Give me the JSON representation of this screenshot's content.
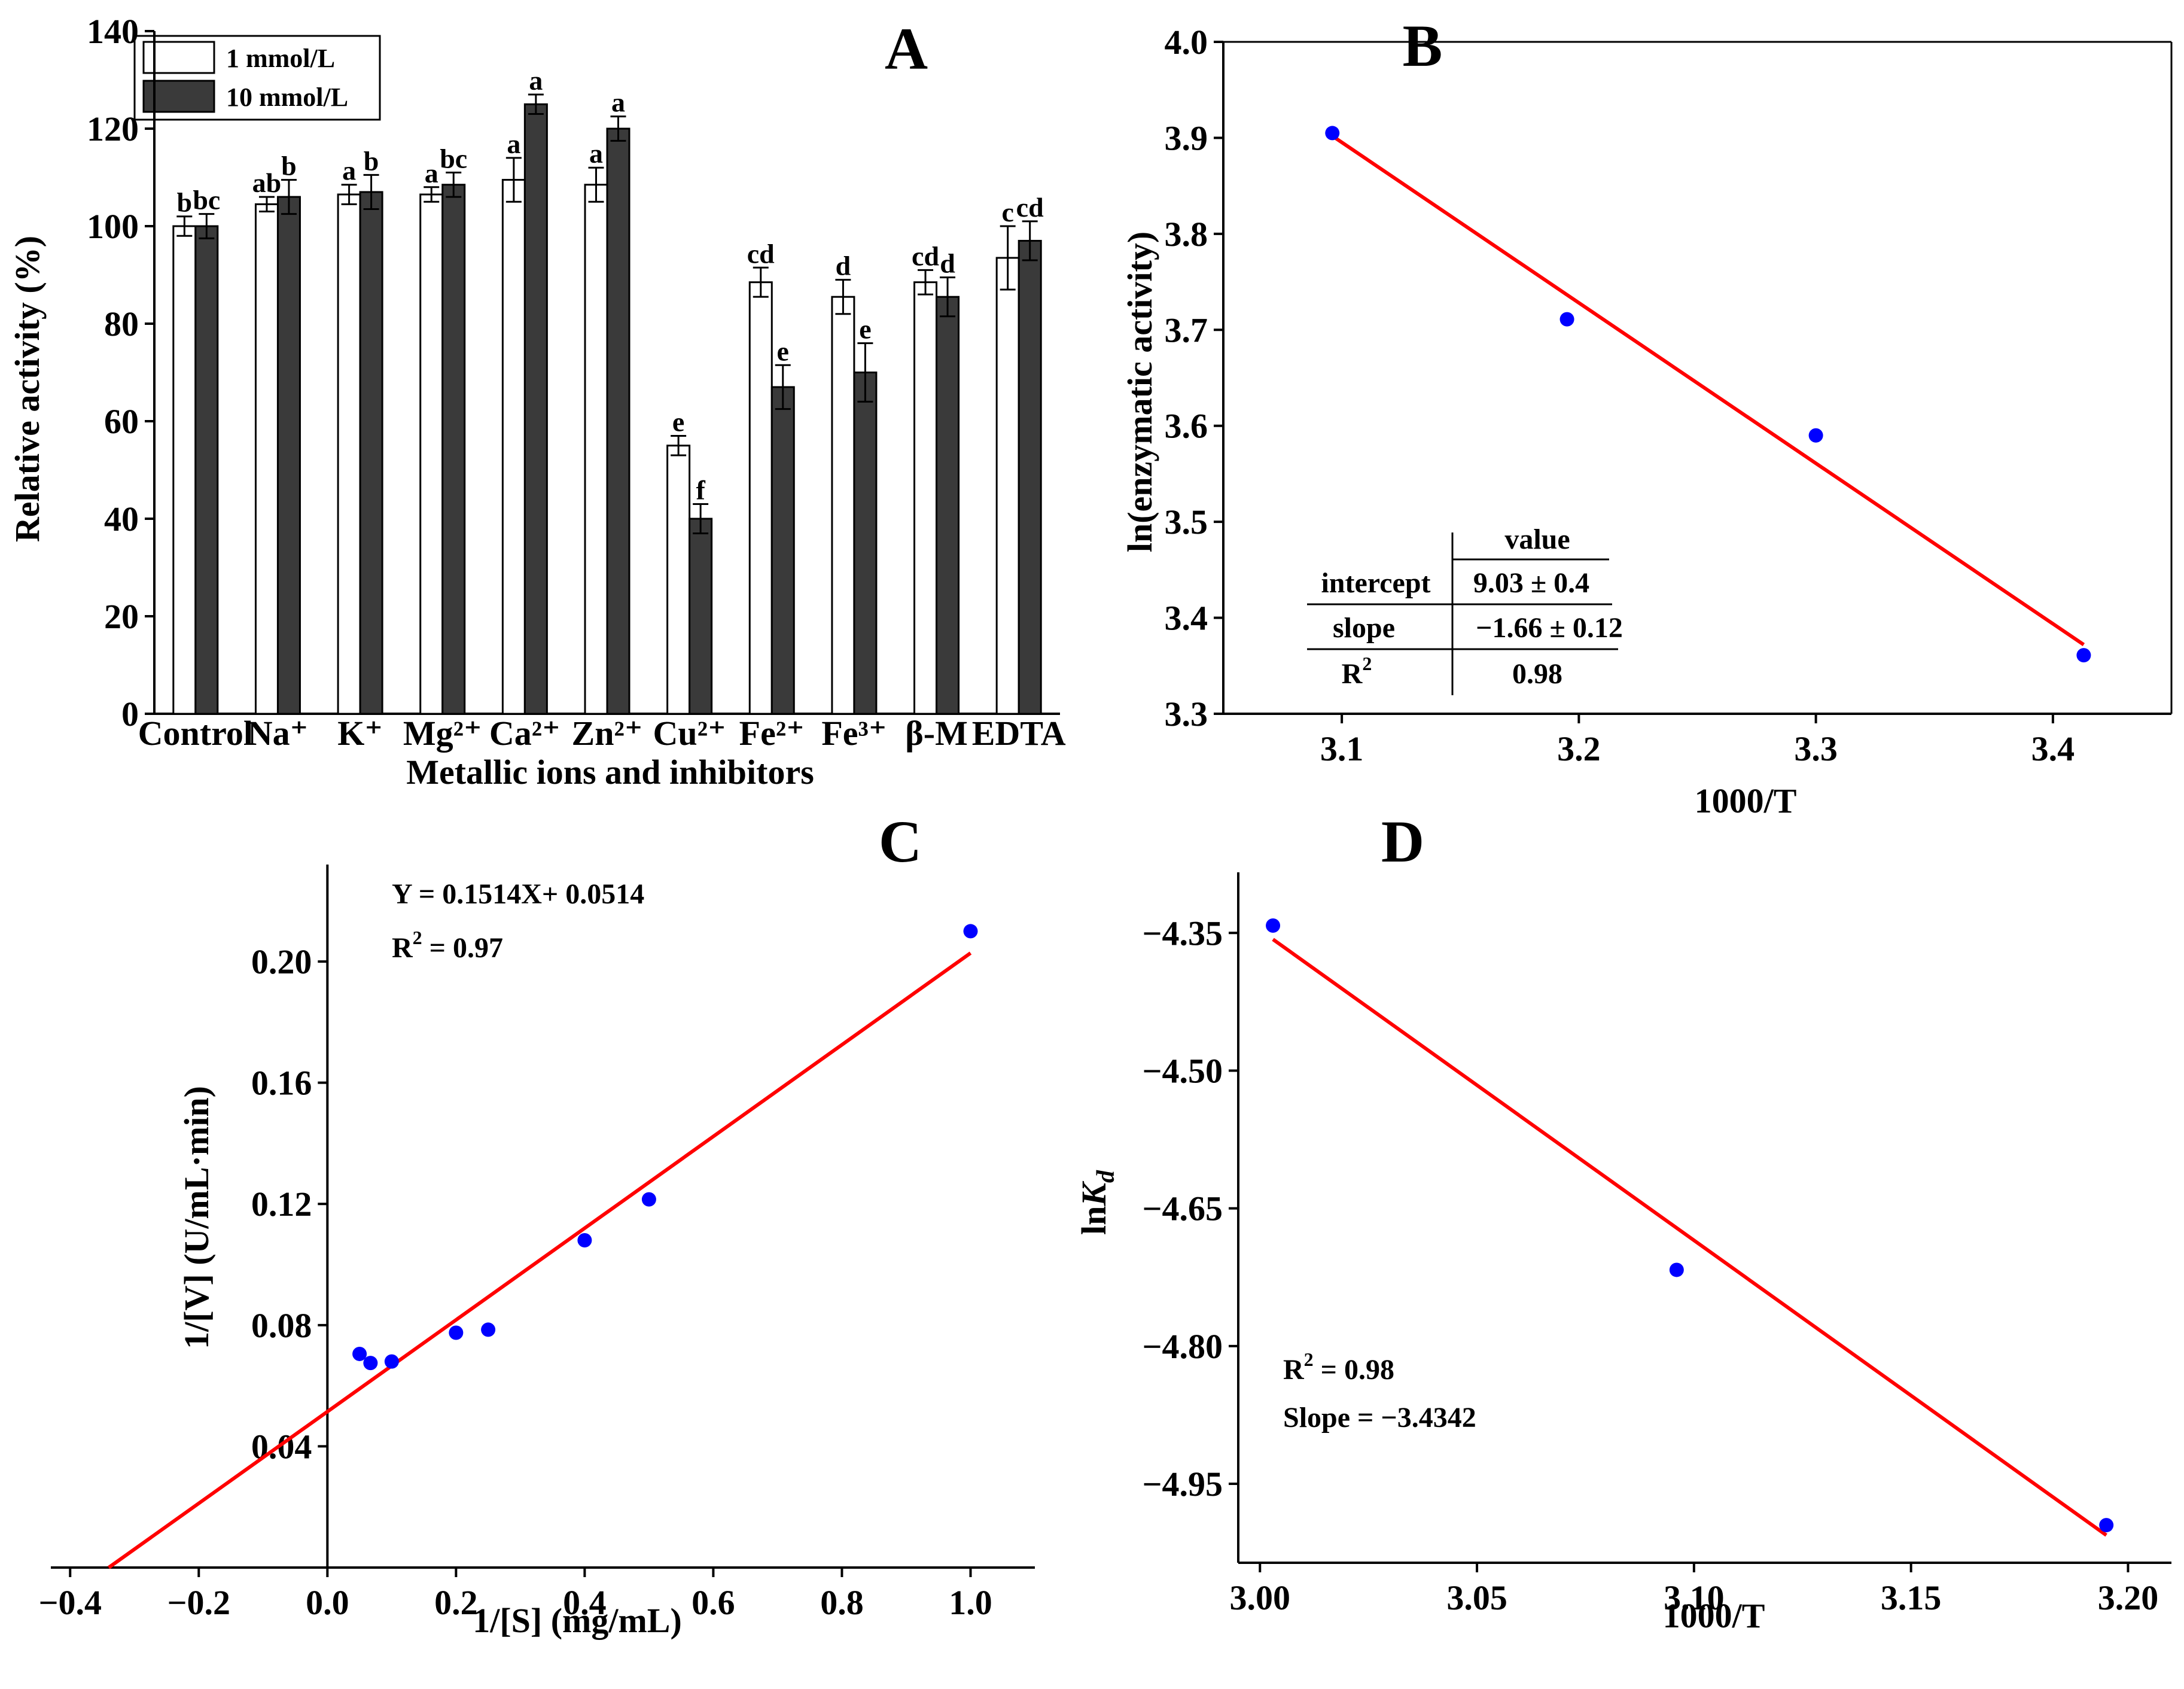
{
  "chart_data": [
    {
      "panel": "A",
      "type": "bar",
      "ylabel": "Relative activity (%)",
      "xlabel": "Metallic ions and inhibitors",
      "ylim": [
        0,
        140
      ],
      "yticks": [
        "0",
        "20",
        "40",
        "60",
        "80",
        "100",
        "120",
        "140"
      ],
      "categories": [
        "Control",
        "Na⁺",
        "K⁺",
        "Mg²⁺",
        "Ca²⁺",
        "Zn²⁺",
        "Cu²⁺",
        "Fe²⁺",
        "Fe³⁺",
        "β-M",
        "EDTA"
      ],
      "series": [
        {
          "name": "1 mmol/L",
          "color": "#ffffff",
          "values": [
            100,
            104.5,
            106.5,
            106.5,
            109.5,
            108.5,
            55,
            88.5,
            85.5,
            88.5,
            93.5
          ],
          "errors": [
            2,
            1.5,
            2,
            1.5,
            4.5,
            3.5,
            2,
            3,
            3.5,
            2.5,
            6.5
          ],
          "letters": [
            "b",
            "ab",
            "a",
            "a",
            "a",
            "a",
            "e",
            "cd",
            "d",
            "cd",
            "c"
          ]
        },
        {
          "name": "10 mmol/L",
          "color": "#3a3a3a",
          "values": [
            100,
            106,
            107,
            108.5,
            125,
            120,
            40,
            67,
            70,
            85.5,
            97
          ],
          "errors": [
            2.5,
            3.5,
            3.5,
            2.5,
            2,
            2.5,
            3,
            4.5,
            6,
            4,
            4
          ],
          "letters": [
            "bc",
            "b",
            "b",
            "bc",
            "a",
            "a",
            "f",
            "e",
            "e",
            "d",
            "cd"
          ]
        }
      ]
    },
    {
      "panel": "B",
      "type": "scatter",
      "xlabel": "1000/T",
      "ylabel": "ln(enzymatic activity)",
      "xlim": [
        3.05,
        3.45
      ],
      "ylim": [
        3.3,
        4.0
      ],
      "xticks": [
        "3.1",
        "3.2",
        "3.3",
        "3.4"
      ],
      "yticks": [
        "3.3",
        "3.4",
        "3.5",
        "3.6",
        "3.7",
        "3.8",
        "3.9",
        "4.0"
      ],
      "x": [
        3.096,
        3.195,
        3.3,
        3.413
      ],
      "y": [
        3.905,
        3.711,
        3.59,
        3.361
      ],
      "fit_x": [
        3.096,
        3.413
      ],
      "fit_y": [
        3.902,
        3.372
      ],
      "table": {
        "header": "value",
        "rows": [
          {
            "label": "intercept",
            "value": "9.03 ± 0.4"
          },
          {
            "label": "slope",
            "value": "−1.66 ± 0.12"
          },
          {
            "label": "R",
            "sup": "2",
            "value": "0.98"
          }
        ]
      }
    },
    {
      "panel": "C",
      "type": "scatter",
      "xlabel": "1/[S] (mg/mL)",
      "ylabel": "1/[V] (U/mL·min)",
      "xlim": [
        -0.43,
        1.1
      ],
      "ylim": [
        0.0,
        0.232
      ],
      "xticks": [
        "−0.4",
        "−0.2",
        "0.0",
        "0.2",
        "0.4",
        "0.6",
        "0.8",
        "1.0"
      ],
      "yticks": [
        "0.04",
        "0.08",
        "0.12",
        "0.16",
        "0.20"
      ],
      "x": [
        0.05,
        0.067,
        0.1,
        0.2,
        0.25,
        0.4,
        0.5,
        1.0
      ],
      "y": [
        0.0705,
        0.0675,
        0.068,
        0.0775,
        0.0785,
        0.108,
        0.1215,
        0.21
      ],
      "fit_x": [
        -0.34,
        1.0
      ],
      "fit_y": [
        0.0,
        0.2028
      ],
      "equation": "Y = 0.1514X+ 0.0514",
      "r2_prefix": "R",
      "r2_sup": "2",
      "r2_value": " = 0.97"
    },
    {
      "panel": "D",
      "type": "scatter",
      "xlabel": "1000/T",
      "ylabel_main": "ln",
      "ylabel_italic": "K",
      "ylabel_sub": "d",
      "xlim": [
        2.995,
        3.21
      ],
      "ylim": [
        -5.036,
        -4.284
      ],
      "xticks": [
        "3.00",
        "3.05",
        "3.10",
        "3.15",
        "3.20"
      ],
      "yticks": [
        "−4.35",
        "−4.50",
        "−4.65",
        "−4.80",
        "−4.95"
      ],
      "x": [
        3.003,
        3.096,
        3.195
      ],
      "y": [
        -4.342,
        -4.717,
        -4.995
      ],
      "fit_x": [
        3.003,
        3.195
      ],
      "fit_y": [
        -4.357,
        -5.006
      ],
      "r2_prefix": "R",
      "r2_sup": "2",
      "r2_value": " = 0.98",
      "slope_text": "Slope = −3.4342"
    }
  ],
  "panel_letters": [
    "A",
    "B",
    "C",
    "D"
  ],
  "colors": {
    "fit_line": "#ff0000",
    "points": "#0000ff",
    "axis": "#000000"
  }
}
